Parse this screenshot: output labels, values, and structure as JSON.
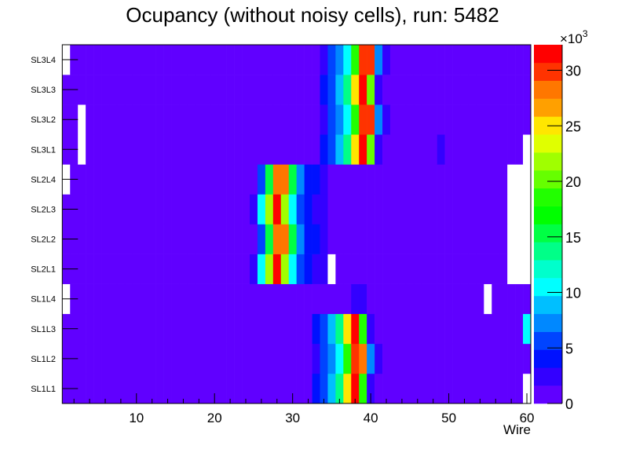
{
  "chart_data": {
    "type": "heatmap",
    "title": "Ocupancy (without noisy cells), run: 5482",
    "xlabel": "Wire",
    "ylabel": "",
    "xlim": [
      0.5,
      60.5
    ],
    "x_ticks": [
      10,
      20,
      30,
      40,
      50,
      60
    ],
    "x_tick_labels": [
      "10",
      "20",
      "30",
      "40",
      "50",
      "60"
    ],
    "y_categories": [
      "SL1L1",
      "SL1L2",
      "SL1L3",
      "SL1L4",
      "SL2L1",
      "SL2L2",
      "SL2L3",
      "SL2L4",
      "SL3L1",
      "SL3L2",
      "SL3L3",
      "SL3L4"
    ],
    "z_range": [
      0,
      32300
    ],
    "z_levels": 20,
    "z_axis_multiplier": "×10",
    "z_axis_exponent": "3",
    "z_ticks": [
      0,
      5000,
      10000,
      15000,
      20000,
      25000,
      30000
    ],
    "z_tick_labels": [
      "0",
      "5",
      "10",
      "15",
      "20",
      "25",
      "30"
    ],
    "palette": [
      "#6000ff",
      "#3300ff",
      "#0011ff",
      "#0044ff",
      "#0088ff",
      "#00bfff",
      "#00ffff",
      "#00ffcc",
      "#00ff88",
      "#00ff44",
      "#00ff00",
      "#22ff00",
      "#66ff00",
      "#a0ff00",
      "#e0ff00",
      "#ffe600",
      "#ffa000",
      "#ff7700",
      "#ff3300",
      "#ff0000"
    ],
    "empty_color": "#ffffff",
    "values": [
      [
        600,
        600,
        600,
        600,
        600,
        600,
        600,
        600,
        600,
        600,
        600,
        600,
        600,
        600,
        600,
        600,
        600,
        600,
        600,
        600,
        600,
        600,
        600,
        600,
        600,
        600,
        600,
        600,
        600,
        600,
        600,
        600,
        4000,
        5700,
        8900,
        13700,
        25000,
        31500,
        18500,
        2400,
        600,
        600,
        600,
        600,
        600,
        600,
        600,
        600,
        600,
        600,
        600,
        600,
        600,
        600,
        600,
        600,
        600,
        600,
        600,
        null
      ],
      [
        600,
        600,
        600,
        600,
        600,
        600,
        600,
        600,
        600,
        600,
        600,
        600,
        600,
        600,
        600,
        600,
        600,
        600,
        600,
        600,
        600,
        600,
        600,
        600,
        600,
        600,
        600,
        600,
        600,
        600,
        600,
        600,
        2400,
        5700,
        7300,
        10500,
        18500,
        29900,
        28200,
        7300,
        2400,
        600,
        600,
        600,
        600,
        600,
        600,
        600,
        600,
        600,
        600,
        600,
        600,
        600,
        600,
        600,
        600,
        600,
        600,
        600
      ],
      [
        600,
        600,
        600,
        600,
        600,
        600,
        600,
        600,
        600,
        600,
        600,
        600,
        600,
        600,
        600,
        600,
        600,
        600,
        600,
        600,
        600,
        600,
        600,
        600,
        600,
        600,
        600,
        600,
        600,
        600,
        600,
        600,
        4000,
        5700,
        8900,
        13700,
        25000,
        31500,
        18500,
        2400,
        600,
        600,
        600,
        600,
        600,
        600,
        600,
        600,
        600,
        600,
        600,
        600,
        600,
        600,
        600,
        600,
        600,
        600,
        600,
        10500
      ],
      [
        null,
        600,
        600,
        600,
        600,
        600,
        600,
        600,
        600,
        600,
        600,
        600,
        600,
        600,
        600,
        600,
        600,
        600,
        600,
        600,
        600,
        600,
        600,
        600,
        600,
        600,
        600,
        600,
        600,
        600,
        600,
        600,
        600,
        600,
        600,
        600,
        600,
        2400,
        2400,
        600,
        600,
        600,
        600,
        600,
        600,
        600,
        600,
        600,
        600,
        600,
        600,
        600,
        600,
        600,
        null,
        600,
        600,
        600,
        600,
        600
      ],
      [
        600,
        600,
        600,
        600,
        600,
        600,
        600,
        600,
        600,
        600,
        600,
        600,
        600,
        600,
        600,
        600,
        600,
        600,
        600,
        600,
        600,
        600,
        600,
        600,
        2400,
        10500,
        21800,
        31500,
        21800,
        10500,
        5700,
        4000,
        2400,
        2400,
        null,
        600,
        600,
        600,
        600,
        600,
        600,
        600,
        600,
        600,
        600,
        600,
        600,
        600,
        600,
        600,
        600,
        600,
        600,
        600,
        600,
        600,
        600,
        null,
        null,
        null
      ],
      [
        600,
        600,
        600,
        600,
        600,
        600,
        600,
        600,
        600,
        600,
        600,
        600,
        600,
        600,
        600,
        600,
        600,
        600,
        600,
        600,
        600,
        600,
        600,
        600,
        600,
        5700,
        15300,
        28200,
        28200,
        15300,
        7300,
        4000,
        4000,
        2400,
        600,
        600,
        600,
        600,
        600,
        600,
        600,
        600,
        600,
        600,
        600,
        600,
        600,
        600,
        600,
        600,
        600,
        600,
        600,
        600,
        600,
        600,
        600,
        null,
        null,
        null
      ],
      [
        600,
        600,
        600,
        600,
        600,
        600,
        600,
        600,
        600,
        600,
        600,
        600,
        600,
        600,
        600,
        600,
        600,
        600,
        600,
        600,
        600,
        600,
        600,
        600,
        2400,
        10500,
        21800,
        31500,
        21800,
        10500,
        5700,
        4000,
        2400,
        2400,
        600,
        600,
        600,
        600,
        600,
        600,
        600,
        600,
        600,
        600,
        600,
        600,
        600,
        600,
        600,
        600,
        600,
        600,
        600,
        600,
        600,
        600,
        600,
        null,
        null,
        null
      ],
      [
        null,
        600,
        600,
        600,
        600,
        600,
        600,
        600,
        600,
        600,
        600,
        600,
        600,
        600,
        600,
        600,
        600,
        600,
        600,
        600,
        600,
        600,
        600,
        600,
        600,
        5700,
        15300,
        28200,
        28200,
        15300,
        7300,
        4000,
        4000,
        2400,
        600,
        600,
        600,
        600,
        600,
        600,
        600,
        600,
        600,
        600,
        600,
        600,
        600,
        600,
        600,
        600,
        600,
        600,
        600,
        600,
        600,
        600,
        600,
        null,
        null,
        null
      ],
      [
        600,
        600,
        null,
        600,
        600,
        600,
        600,
        600,
        600,
        600,
        600,
        600,
        600,
        600,
        600,
        600,
        600,
        600,
        600,
        600,
        600,
        600,
        600,
        600,
        600,
        600,
        600,
        600,
        600,
        600,
        600,
        600,
        600,
        4000,
        5700,
        8900,
        13700,
        25000,
        31500,
        20100,
        2400,
        1200,
        600,
        600,
        600,
        600,
        600,
        600,
        2400,
        600,
        600,
        600,
        600,
        600,
        600,
        600,
        600,
        600,
        600,
        null
      ],
      [
        600,
        600,
        null,
        600,
        600,
        600,
        600,
        600,
        600,
        600,
        600,
        600,
        600,
        600,
        600,
        600,
        600,
        600,
        600,
        600,
        600,
        600,
        600,
        600,
        600,
        600,
        600,
        600,
        600,
        600,
        600,
        600,
        600,
        2400,
        5700,
        7300,
        10500,
        18500,
        29900,
        29900,
        7300,
        2400,
        600,
        600,
        600,
        600,
        600,
        600,
        600,
        600,
        600,
        600,
        600,
        600,
        600,
        600,
        600,
        600,
        600,
        600
      ],
      [
        600,
        600,
        600,
        600,
        600,
        600,
        600,
        600,
        600,
        600,
        600,
        600,
        600,
        600,
        600,
        600,
        600,
        600,
        600,
        600,
        600,
        600,
        600,
        600,
        600,
        600,
        600,
        600,
        600,
        600,
        600,
        600,
        600,
        4000,
        5700,
        8900,
        13700,
        25000,
        31500,
        20100,
        2400,
        1200,
        600,
        600,
        600,
        600,
        600,
        600,
        600,
        600,
        600,
        600,
        600,
        600,
        600,
        600,
        600,
        600,
        600,
        600
      ],
      [
        null,
        600,
        600,
        600,
        600,
        600,
        600,
        600,
        600,
        600,
        600,
        600,
        600,
        600,
        600,
        600,
        600,
        600,
        600,
        600,
        600,
        600,
        600,
        600,
        600,
        600,
        600,
        600,
        600,
        600,
        600,
        600,
        600,
        2400,
        5700,
        7300,
        10500,
        18500,
        29900,
        29900,
        7300,
        2400,
        600,
        600,
        600,
        600,
        600,
        600,
        600,
        600,
        600,
        600,
        600,
        600,
        600,
        600,
        600,
        600,
        600,
        600
      ]
    ]
  }
}
